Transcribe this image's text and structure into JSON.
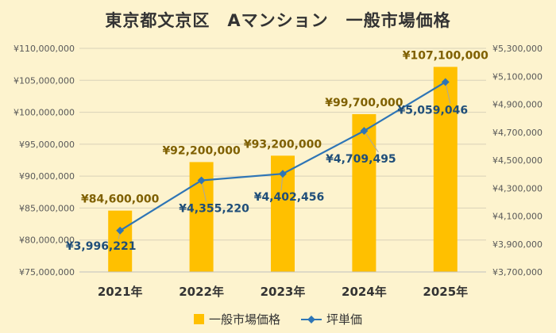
{
  "chart_data": {
    "type": "bar",
    "title": "東京都文京区　Aマンション　一般市場価格",
    "categories": [
      "2021年",
      "2022年",
      "2023年",
      "2024年",
      "2025年"
    ],
    "series": [
      {
        "name": "一般市場価格",
        "type": "bar",
        "axis": "left",
        "color": "#ffc000",
        "values": [
          84600000,
          92200000,
          93200000,
          99700000,
          107100000
        ],
        "labels": [
          "¥84,600,000",
          "¥92,200,000",
          "¥93,200,000",
          "¥99,700,000",
          "¥107,100,000"
        ],
        "label_color": "#7f6000"
      },
      {
        "name": "坪単価",
        "type": "line",
        "axis": "right",
        "color": "#2e75b6",
        "values": [
          3996221,
          4355220,
          4402456,
          4709495,
          5059046
        ],
        "labels": [
          "¥3,996,221",
          "¥4,355,220",
          "¥4,402,456",
          "¥4,709,495",
          "¥5,059,046"
        ],
        "label_color": "#1f4e79"
      }
    ],
    "y_left": {
      "ylim": [
        75000000,
        110000000
      ],
      "ticks": [
        75000000,
        80000000,
        85000000,
        90000000,
        95000000,
        100000000,
        105000000,
        110000000
      ],
      "tick_labels": [
        "¥75,000,000",
        "¥80,000,000",
        "¥85,000,000",
        "¥90,000,000",
        "¥95,000,000",
        "¥100,000,000",
        "¥105,000,000",
        "¥110,000,000"
      ]
    },
    "y_right": {
      "ylim": [
        3700000,
        5300000
      ],
      "ticks": [
        3700000,
        3900000,
        4100000,
        4300000,
        4500000,
        4700000,
        4900000,
        5100000,
        5300000
      ],
      "tick_labels": [
        "¥3,700,000",
        "¥3,900,000",
        "¥4,100,000",
        "¥4,300,000",
        "¥4,500,000",
        "¥4,700,000",
        "¥4,900,000",
        "¥5,100,000",
        "¥5,300,000"
      ]
    },
    "grid": true,
    "legend": "bottom",
    "background": "#fdf3ce"
  }
}
